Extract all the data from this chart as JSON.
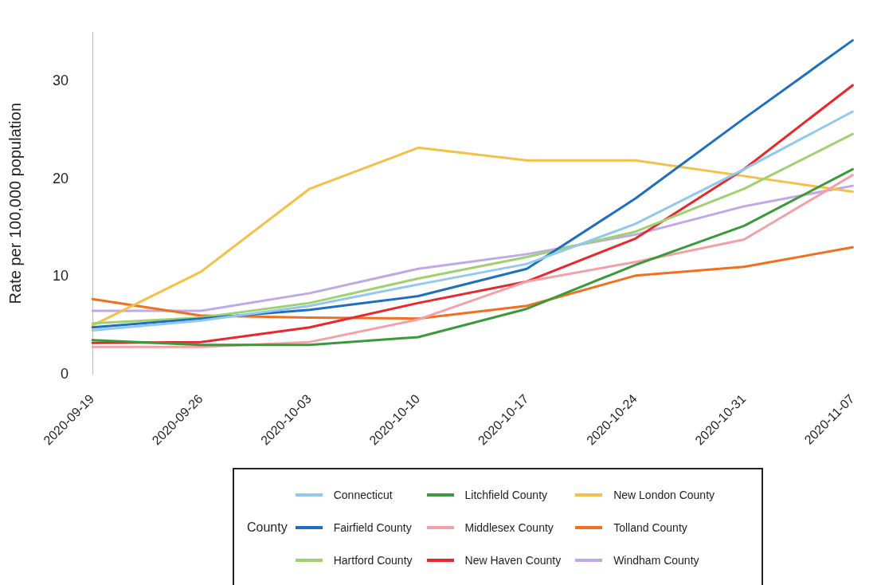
{
  "chart_data": {
    "type": "line",
    "ylabel": "Rate per 100,000 population",
    "legend_title": "County",
    "legend": "bottom",
    "grid": false,
    "marker": "none",
    "line_style": "solid",
    "categories": [
      "2020-09-19",
      "2020-09-26",
      "2020-10-03",
      "2020-10-10",
      "2020-10-17",
      "2020-10-24",
      "2020-10-31",
      "2020-11-07"
    ],
    "ylim": [
      0,
      35
    ],
    "yticks": [
      0,
      10,
      20,
      30
    ],
    "series": [
      {
        "name": "Connecticut",
        "color": "#90c8f0",
        "values": [
          4.5,
          5.5,
          7.0,
          9.2,
          11.3,
          15.4,
          21.0,
          26.9
        ]
      },
      {
        "name": "Fairfield County",
        "color": "#1f6fc0",
        "values": [
          4.8,
          5.7,
          6.6,
          8.0,
          10.8,
          18.0,
          26.2,
          34.2
        ]
      },
      {
        "name": "Hartford County",
        "color": "#a0d070",
        "values": [
          5.2,
          5.8,
          7.3,
          9.8,
          12.0,
          14.6,
          19.0,
          24.6
        ]
      },
      {
        "name": "Litchfield County",
        "color": "#3a9a3a",
        "values": [
          3.5,
          3.0,
          3.0,
          3.8,
          6.7,
          11.2,
          15.2,
          21.0
        ]
      },
      {
        "name": "Middlesex County",
        "color": "#f4a0a8",
        "values": [
          2.8,
          2.8,
          3.3,
          5.6,
          9.5,
          11.5,
          13.8,
          20.4
        ]
      },
      {
        "name": "New Haven County",
        "color": "#e8282c",
        "values": [
          3.2,
          3.3,
          4.8,
          7.3,
          9.5,
          13.9,
          21.0,
          29.6
        ]
      },
      {
        "name": "New London County",
        "color": "#f4c048",
        "values": [
          5.0,
          10.5,
          19.0,
          23.2,
          21.9,
          21.9,
          20.3,
          18.7
        ]
      },
      {
        "name": "Tolland County",
        "color": "#f07020",
        "values": [
          7.7,
          6.0,
          5.8,
          5.7,
          7.0,
          10.1,
          11.0,
          13.0
        ]
      },
      {
        "name": "Windham County",
        "color": "#c0a8e8",
        "values": [
          6.5,
          6.5,
          8.3,
          10.8,
          12.3,
          14.3,
          17.2,
          19.3
        ]
      }
    ]
  }
}
